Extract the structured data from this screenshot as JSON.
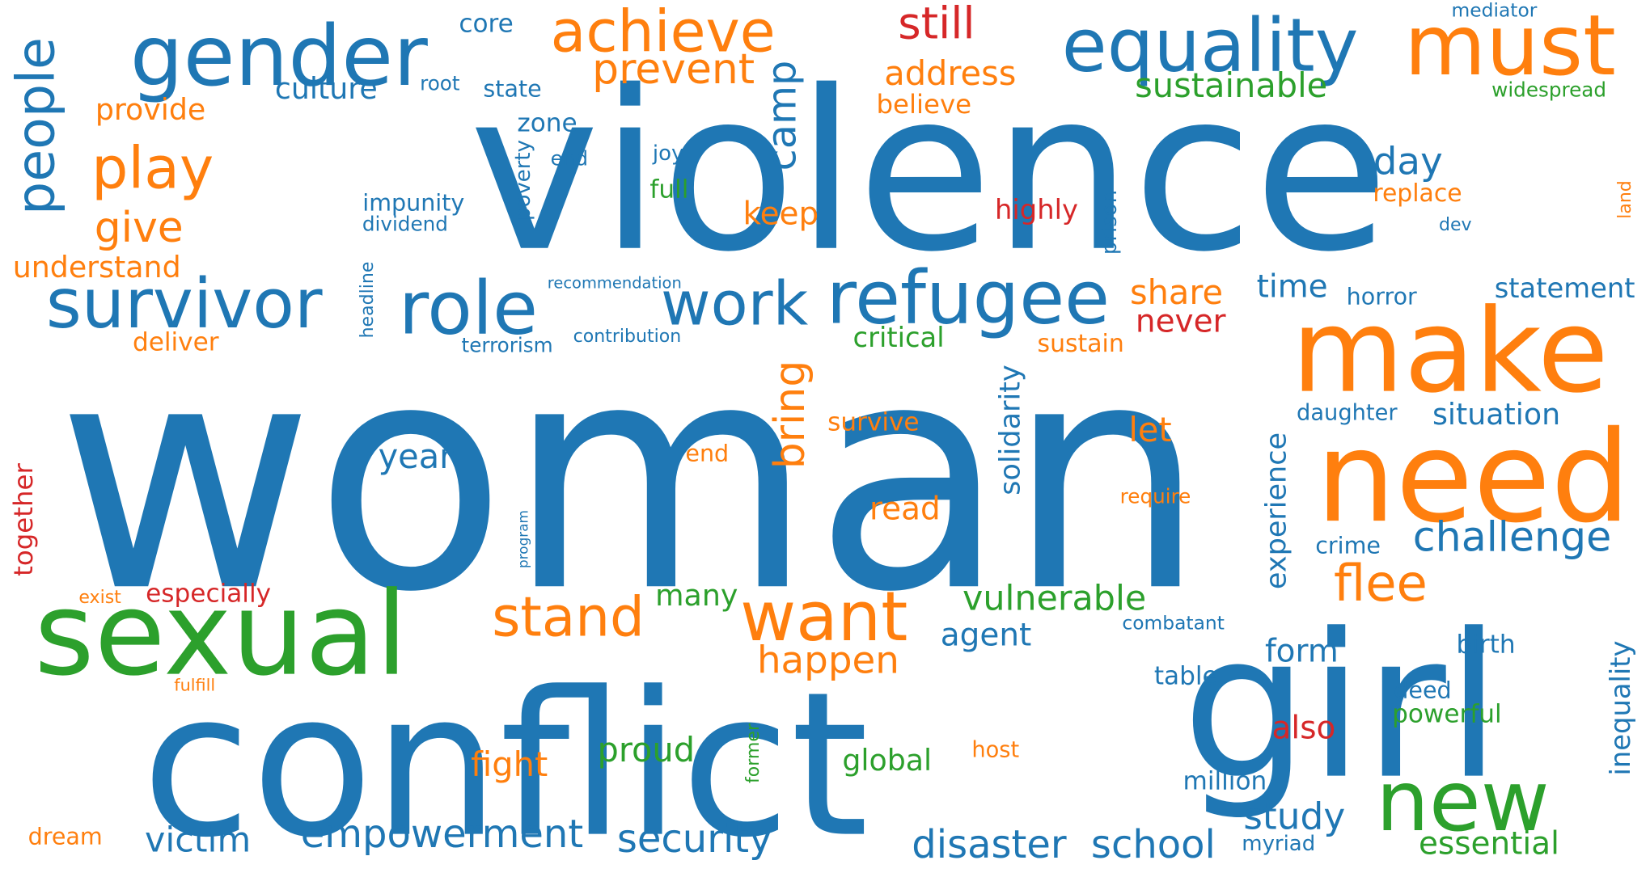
{
  "palette": {
    "blue": "#1f77b4",
    "orange": "#ff7f0e",
    "green": "#2ca02c",
    "red": "#d62728"
  },
  "words": [
    {
      "text": "woman",
      "color": "blue"
    },
    {
      "text": "violence",
      "color": "blue"
    },
    {
      "text": "conflict",
      "color": "blue"
    },
    {
      "text": "girl",
      "color": "blue"
    },
    {
      "text": "make",
      "color": "orange"
    },
    {
      "text": "need",
      "color": "orange"
    },
    {
      "text": "sexual",
      "color": "green"
    },
    {
      "text": "gender",
      "color": "blue"
    },
    {
      "text": "equality",
      "color": "blue"
    },
    {
      "text": "must",
      "color": "orange"
    },
    {
      "text": "achieve",
      "color": "orange"
    },
    {
      "text": "survivor",
      "color": "blue"
    },
    {
      "text": "role",
      "color": "blue"
    },
    {
      "text": "refugee",
      "color": "blue"
    },
    {
      "text": "work",
      "color": "blue"
    },
    {
      "text": "play",
      "color": "orange"
    },
    {
      "text": "people",
      "color": "blue"
    },
    {
      "text": "new",
      "color": "green"
    },
    {
      "text": "want",
      "color": "orange"
    },
    {
      "text": "stand",
      "color": "orange"
    },
    {
      "text": "flee",
      "color": "orange"
    },
    {
      "text": "still",
      "color": "red"
    },
    {
      "text": "prevent",
      "color": "orange"
    },
    {
      "text": "camp",
      "color": "blue"
    },
    {
      "text": "address",
      "color": "orange"
    },
    {
      "text": "sustainable",
      "color": "green"
    },
    {
      "text": "culture",
      "color": "blue"
    },
    {
      "text": "core",
      "color": "blue"
    },
    {
      "text": "root",
      "color": "blue"
    },
    {
      "text": "state",
      "color": "blue"
    },
    {
      "text": "provide",
      "color": "orange"
    },
    {
      "text": "give",
      "color": "orange"
    },
    {
      "text": "understand",
      "color": "orange"
    },
    {
      "text": "zone",
      "color": "blue"
    },
    {
      "text": "end",
      "color": "blue"
    },
    {
      "text": "joy",
      "color": "blue"
    },
    {
      "text": "full",
      "color": "green"
    },
    {
      "text": "poverty",
      "color": "blue"
    },
    {
      "text": "impunity",
      "color": "blue"
    },
    {
      "text": "dividend",
      "color": "blue"
    },
    {
      "text": "headline",
      "color": "blue"
    },
    {
      "text": "recommendation",
      "color": "blue"
    },
    {
      "text": "contribution",
      "color": "blue"
    },
    {
      "text": "terrorism",
      "color": "blue"
    },
    {
      "text": "deliver",
      "color": "orange"
    },
    {
      "text": "keep",
      "color": "orange"
    },
    {
      "text": "highly",
      "color": "red"
    },
    {
      "text": "prison",
      "color": "blue"
    },
    {
      "text": "believe",
      "color": "orange"
    },
    {
      "text": "day",
      "color": "blue"
    },
    {
      "text": "replace",
      "color": "orange"
    },
    {
      "text": "dev",
      "color": "blue"
    },
    {
      "text": "land",
      "color": "orange"
    },
    {
      "text": "mediator",
      "color": "blue"
    },
    {
      "text": "widespread",
      "color": "green"
    },
    {
      "text": "share",
      "color": "orange"
    },
    {
      "text": "never",
      "color": "red"
    },
    {
      "text": "time",
      "color": "blue"
    },
    {
      "text": "horror",
      "color": "blue"
    },
    {
      "text": "statement",
      "color": "blue"
    },
    {
      "text": "critical",
      "color": "green"
    },
    {
      "text": "sustain",
      "color": "orange"
    },
    {
      "text": "solidarity",
      "color": "blue"
    },
    {
      "text": "bring",
      "color": "orange"
    },
    {
      "text": "survive",
      "color": "orange"
    },
    {
      "text": "end",
      "color": "orange"
    },
    {
      "text": "year",
      "color": "blue"
    },
    {
      "text": "let",
      "color": "orange"
    },
    {
      "text": "read",
      "color": "orange"
    },
    {
      "text": "require",
      "color": "orange"
    },
    {
      "text": "experience",
      "color": "blue"
    },
    {
      "text": "daughter",
      "color": "blue"
    },
    {
      "text": "situation",
      "color": "blue"
    },
    {
      "text": "challenge",
      "color": "blue"
    },
    {
      "text": "crime",
      "color": "blue"
    },
    {
      "text": "together",
      "color": "red"
    },
    {
      "text": "program",
      "color": "blue"
    },
    {
      "text": "exist",
      "color": "orange"
    },
    {
      "text": "especially",
      "color": "red"
    },
    {
      "text": "many",
      "color": "green"
    },
    {
      "text": "vulnerable",
      "color": "green"
    },
    {
      "text": "agent",
      "color": "blue"
    },
    {
      "text": "happen",
      "color": "orange"
    },
    {
      "text": "combatant",
      "color": "blue"
    },
    {
      "text": "form",
      "color": "blue"
    },
    {
      "text": "birth",
      "color": "blue"
    },
    {
      "text": "inequality",
      "color": "blue"
    },
    {
      "text": "table",
      "color": "blue"
    },
    {
      "text": "deed",
      "color": "blue"
    },
    {
      "text": "powerful",
      "color": "green"
    },
    {
      "text": "also",
      "color": "red"
    },
    {
      "text": "fulfill",
      "color": "orange"
    },
    {
      "text": "former",
      "color": "green"
    },
    {
      "text": "host",
      "color": "orange"
    },
    {
      "text": "fight",
      "color": "orange"
    },
    {
      "text": "proud",
      "color": "green"
    },
    {
      "text": "global",
      "color": "green"
    },
    {
      "text": "million",
      "color": "blue"
    },
    {
      "text": "study",
      "color": "blue"
    },
    {
      "text": "empowerment",
      "color": "blue"
    },
    {
      "text": "security",
      "color": "blue"
    },
    {
      "text": "victim",
      "color": "blue"
    },
    {
      "text": "dream",
      "color": "orange"
    },
    {
      "text": "disaster",
      "color": "blue"
    },
    {
      "text": "school",
      "color": "blue"
    },
    {
      "text": "myriad",
      "color": "blue"
    },
    {
      "text": "essential",
      "color": "green"
    }
  ]
}
